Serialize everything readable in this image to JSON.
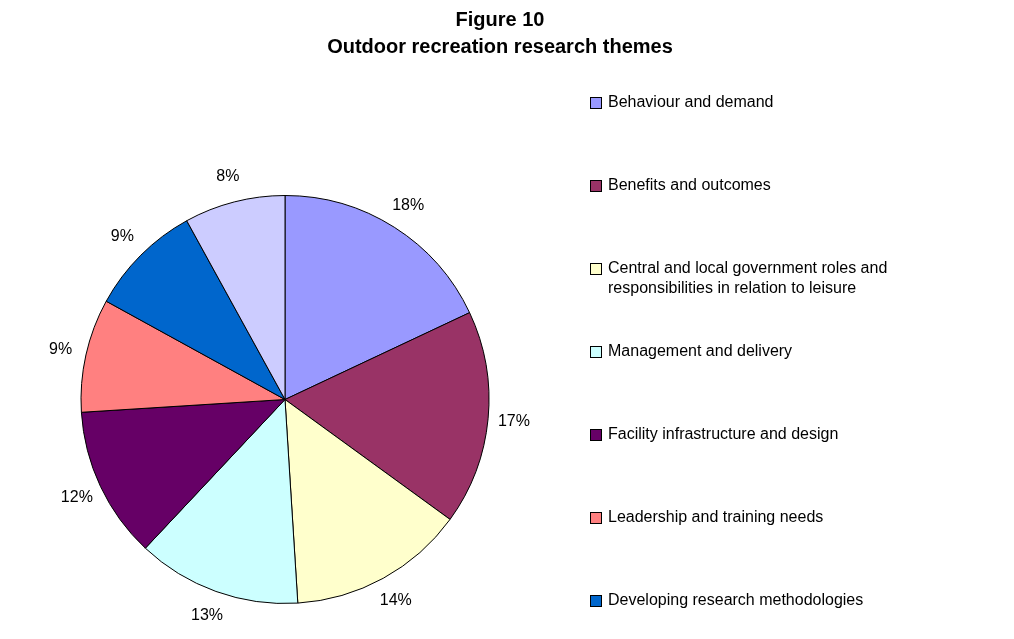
{
  "chart_data": {
    "type": "pie",
    "title": "Figure 10\nOutdoor recreation research themes",
    "categories": [
      "Behaviour and demand",
      "Benefits and outcomes",
      "Central and local government roles and responsibilities in relation to leisure",
      "Management and delivery",
      "Facility infrastructure and design",
      "Leadership and training needs",
      "Developing research methodologies",
      null
    ],
    "values": [
      18,
      17,
      14,
      13,
      12,
      9,
      9,
      8
    ],
    "value_labels": [
      "18%",
      "17%",
      "14%",
      "13%",
      "12%",
      "9%",
      "9%",
      "8%"
    ],
    "colors": [
      "#9999ff",
      "#993366",
      "#ffffcc",
      "#ccffff",
      "#660066",
      "#ff8080",
      "#0066cc",
      "#ccccff"
    ],
    "legend": "right"
  }
}
